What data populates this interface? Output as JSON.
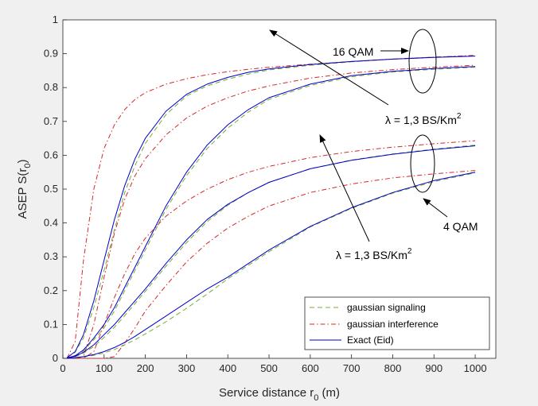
{
  "chart_data": {
    "type": "line",
    "title": "",
    "xlabel": "Service distance r",
    "xlabel_sub": "0",
    "xlabel_unit": " (m)",
    "ylabel": "ASEP S(r",
    "ylabel_sub": "0",
    "ylabel_close": ")",
    "xlim": [
      0,
      1050
    ],
    "ylim": [
      0,
      1
    ],
    "xticks": [
      "0",
      "100",
      "200",
      "300",
      "400",
      "500",
      "600",
      "700",
      "800",
      "900",
      "1000"
    ],
    "yticks": [
      "0",
      "0.1",
      "0.2",
      "0.3",
      "0.4",
      "0.5",
      "0.6",
      "0.7",
      "0.8",
      "0.9",
      "1"
    ],
    "grid": false,
    "legend_position": "bottom-right",
    "colors": {
      "gaussian_signaling": "#77ac30",
      "gaussian_interference": "#d62728",
      "exact": "#0000cc",
      "background": "#f0f0f0"
    },
    "legend": {
      "items": [
        {
          "label": "gaussian signaling",
          "style": "dashed",
          "color": "#77ac30"
        },
        {
          "label": "gaussian interference",
          "style": "dashdot",
          "color": "#d62728"
        },
        {
          "label": "Exact (Eid)",
          "style": "solid",
          "color": "#0000cc"
        }
      ]
    },
    "annotations": {
      "qam16": "16 QAM",
      "qam4": "4 QAM",
      "lambda_top": "λ = 1,3 BS/Km",
      "lambda_bottom": "λ = 1,3 BS/Km",
      "lambda_sup": "2"
    },
    "x": [
      10,
      30,
      50,
      75,
      100,
      125,
      150,
      175,
      200,
      250,
      300,
      350,
      400,
      450,
      500,
      600,
      700,
      800,
      900,
      1000
    ],
    "series": [
      {
        "group": "16 QAM, λ=1",
        "kind": "exact",
        "values": [
          0.002,
          0.02,
          0.07,
          0.17,
          0.29,
          0.41,
          0.51,
          0.59,
          0.65,
          0.73,
          0.78,
          0.81,
          0.83,
          0.845,
          0.855,
          0.868,
          0.877,
          0.884,
          0.889,
          0.893
        ]
      },
      {
        "group": "16 QAM, λ=1",
        "kind": "gaussian signaling",
        "values": [
          0.002,
          0.018,
          0.06,
          0.15,
          0.26,
          0.38,
          0.49,
          0.57,
          0.635,
          0.72,
          0.775,
          0.805,
          0.825,
          0.84,
          0.852,
          0.866,
          0.876,
          0.884,
          0.89,
          0.894
        ]
      },
      {
        "group": "16 QAM, λ=1",
        "kind": "gaussian interference",
        "values": [
          0.0,
          0.05,
          0.29,
          0.5,
          0.62,
          0.69,
          0.735,
          0.765,
          0.785,
          0.81,
          0.826,
          0.838,
          0.847,
          0.854,
          0.86,
          0.869,
          0.877,
          0.884,
          0.89,
          0.895
        ]
      },
      {
        "group": "16 QAM, λ=3",
        "kind": "exact",
        "values": [
          0.001,
          0.008,
          0.025,
          0.06,
          0.1,
          0.15,
          0.21,
          0.27,
          0.33,
          0.45,
          0.55,
          0.63,
          0.69,
          0.735,
          0.77,
          0.81,
          0.835,
          0.848,
          0.856,
          0.862
        ]
      },
      {
        "group": "16 QAM, λ=3",
        "kind": "gaussian signaling",
        "values": [
          0.001,
          0.007,
          0.022,
          0.055,
          0.09,
          0.14,
          0.2,
          0.26,
          0.32,
          0.44,
          0.54,
          0.62,
          0.68,
          0.728,
          0.765,
          0.806,
          0.832,
          0.846,
          0.854,
          0.86
        ]
      },
      {
        "group": "16 QAM, λ=3",
        "kind": "gaussian interference",
        "values": [
          0.0,
          0.0,
          0.005,
          0.1,
          0.24,
          0.37,
          0.47,
          0.54,
          0.59,
          0.66,
          0.71,
          0.745,
          0.77,
          0.79,
          0.805,
          0.828,
          0.843,
          0.853,
          0.86,
          0.866
        ]
      },
      {
        "group": "4 QAM, λ=1",
        "kind": "exact",
        "values": [
          0.001,
          0.006,
          0.018,
          0.04,
          0.07,
          0.1,
          0.135,
          0.17,
          0.205,
          0.28,
          0.35,
          0.41,
          0.455,
          0.49,
          0.52,
          0.56,
          0.585,
          0.603,
          0.617,
          0.628
        ]
      },
      {
        "group": "4 QAM, λ=1",
        "kind": "gaussian signaling",
        "values": [
          0.001,
          0.005,
          0.015,
          0.035,
          0.062,
          0.092,
          0.126,
          0.162,
          0.198,
          0.272,
          0.342,
          0.404,
          0.452,
          0.49,
          0.52,
          0.56,
          0.586,
          0.604,
          0.618,
          0.63
        ]
      },
      {
        "group": "4 QAM, λ=1",
        "kind": "gaussian interference",
        "values": [
          0.0,
          0.0,
          0.0,
          0.02,
          0.1,
          0.18,
          0.25,
          0.31,
          0.355,
          0.42,
          0.465,
          0.5,
          0.528,
          0.55,
          0.567,
          0.593,
          0.611,
          0.624,
          0.634,
          0.643
        ]
      },
      {
        "group": "4 QAM, λ=3",
        "kind": "exact",
        "values": [
          0.0,
          0.002,
          0.005,
          0.011,
          0.02,
          0.032,
          0.047,
          0.065,
          0.085,
          0.125,
          0.165,
          0.205,
          0.24,
          0.28,
          0.32,
          0.39,
          0.445,
          0.49,
          0.525,
          0.55
        ]
      },
      {
        "group": "4 QAM, λ=3",
        "kind": "gaussian signaling",
        "values": [
          0.0,
          0.0015,
          0.004,
          0.009,
          0.016,
          0.026,
          0.04,
          0.055,
          0.072,
          0.108,
          0.148,
          0.19,
          0.235,
          0.275,
          0.315,
          0.388,
          0.443,
          0.488,
          0.522,
          0.548
        ]
      },
      {
        "group": "4 QAM, λ=3",
        "kind": "gaussian interference",
        "values": [
          0.0,
          0.0,
          0.0,
          0.0,
          0.0,
          0.005,
          0.045,
          0.09,
          0.14,
          0.215,
          0.285,
          0.34,
          0.385,
          0.42,
          0.45,
          0.49,
          0.515,
          0.533,
          0.545,
          0.555
        ]
      }
    ]
  }
}
